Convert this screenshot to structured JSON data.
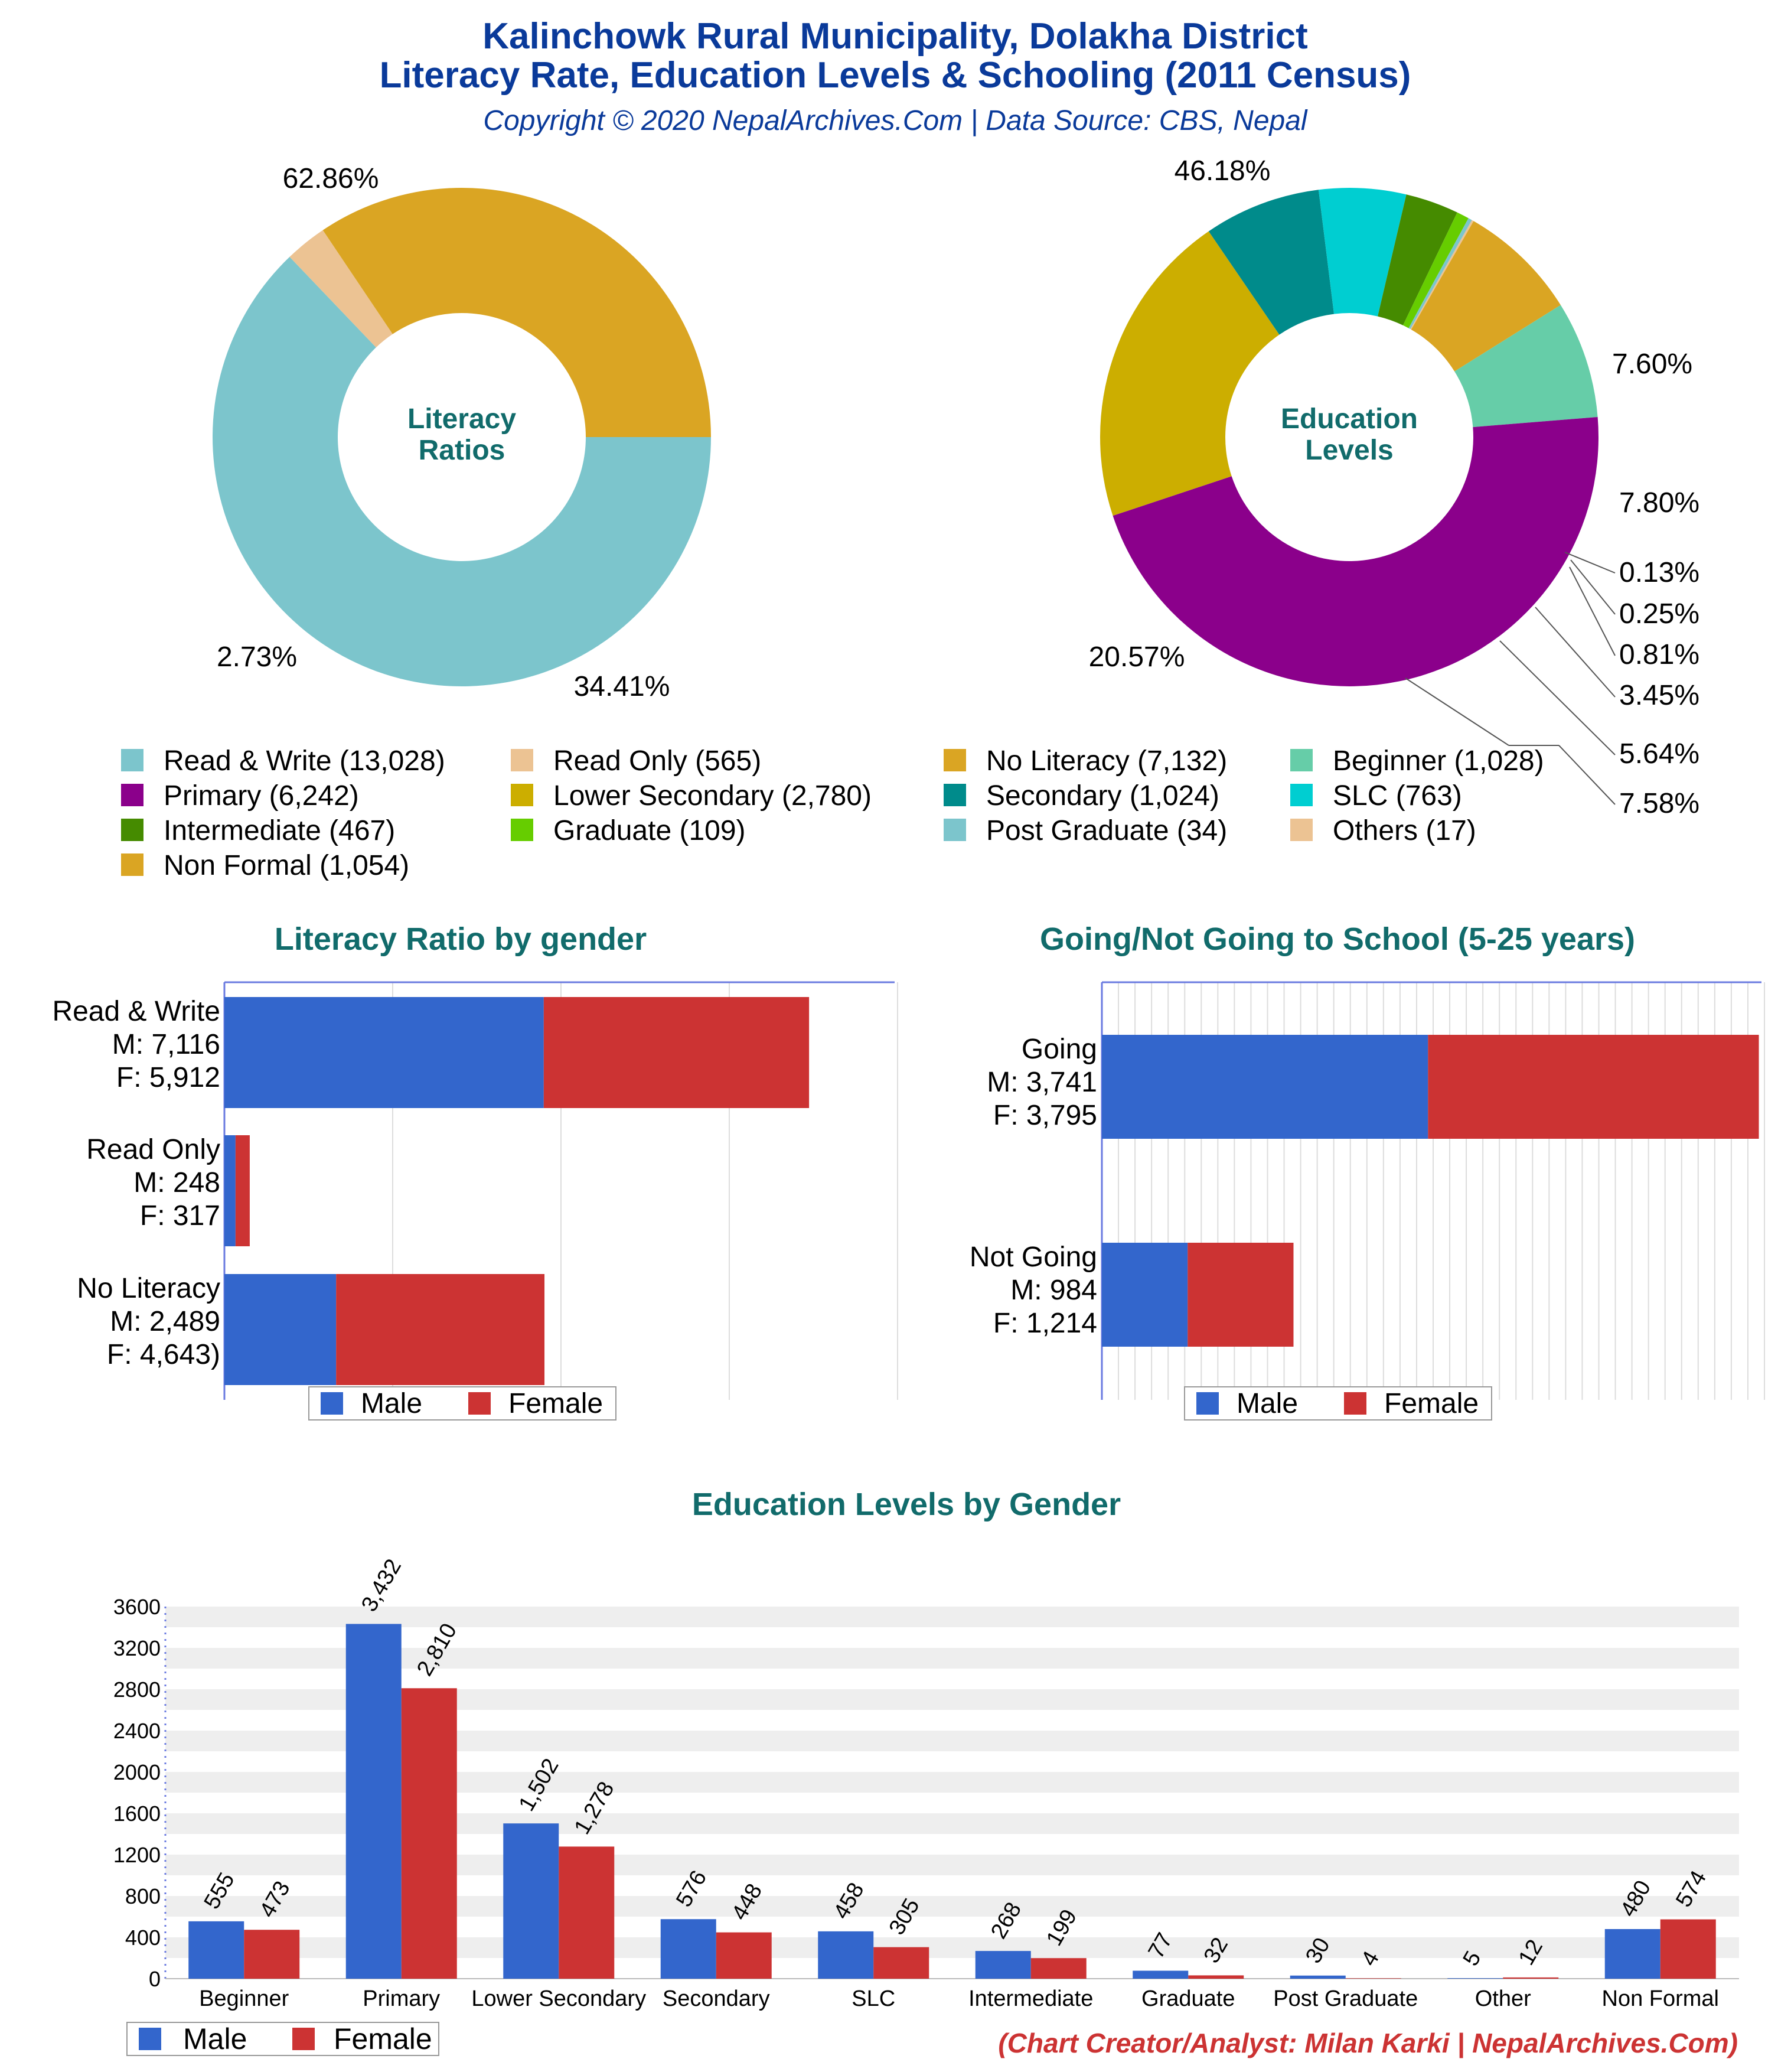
{
  "header": {
    "title_line1": "Kalinchowk Rural Municipality, Dolakha District",
    "title_line2": "Literacy Rate, Education Levels & Schooling (2011 Census)",
    "copyright": "Copyright © 2020 NepalArchives.Com | Data Source: CBS, Nepal"
  },
  "credit": "(Chart Creator/Analyst: Milan Karki | NepalArchives.Com)",
  "colors": {
    "title_blue": "#0a3a9a",
    "teal_title": "#116b6b",
    "male": "#3366cc",
    "female": "#cc3333",
    "credit_red": "#cc3333"
  },
  "chart_data": [
    {
      "type": "pie",
      "style": "donut",
      "center_label": [
        "Literacy",
        "Ratios"
      ],
      "slices": [
        {
          "label": "Read & Write",
          "value": 13028,
          "percent_label": "62.86%",
          "color": "#7cc5cc"
        },
        {
          "label": "Read Only",
          "value": 565,
          "percent_label": "2.73%",
          "color": "#ecc393"
        },
        {
          "label": "No Literacy",
          "value": 7132,
          "percent_label": "34.41%",
          "color": "#daa523"
        }
      ]
    },
    {
      "type": "pie",
      "style": "donut",
      "center_label": [
        "Education",
        "Levels"
      ],
      "slices": [
        {
          "label": "Beginner",
          "value": 1028,
          "percent_label": "7.60%",
          "color": "#66cda8"
        },
        {
          "label": "Primary",
          "value": 6242,
          "percent_label": "46.18%",
          "color": "#8b008b"
        },
        {
          "label": "Lower Secondary",
          "value": 2780,
          "percent_label": "20.57%",
          "color": "#ccae00"
        },
        {
          "label": "Secondary",
          "value": 1024,
          "percent_label": "7.58%",
          "color": "#008b8b"
        },
        {
          "label": "SLC",
          "value": 763,
          "percent_label": "5.64%",
          "color": "#00ced1"
        },
        {
          "label": "Intermediate",
          "value": 467,
          "percent_label": "3.45%",
          "color": "#458b00"
        },
        {
          "label": "Graduate",
          "value": 109,
          "percent_label": "0.81%",
          "color": "#66cd00"
        },
        {
          "label": "Post Graduate",
          "value": 34,
          "percent_label": "0.25%",
          "color": "#7cc5cc"
        },
        {
          "label": "Others",
          "value": 17,
          "percent_label": "0.13%",
          "color": "#ecc393"
        },
        {
          "label": "Non Formal",
          "value": 1054,
          "percent_label": "7.80%",
          "color": "#daa523"
        }
      ],
      "legend": [
        {
          "text": "Read & Write (13,028)",
          "color": "#7cc5cc"
        },
        {
          "text": "Read Only (565)",
          "color": "#ecc393"
        },
        {
          "text": "No Literacy (7,132)",
          "color": "#daa523"
        },
        {
          "text": "Beginner (1,028)",
          "color": "#66cda8"
        },
        {
          "text": "Primary (6,242)",
          "color": "#8b008b"
        },
        {
          "text": "Lower Secondary (2,780)",
          "color": "#ccae00"
        },
        {
          "text": "Secondary (1,024)",
          "color": "#008b8b"
        },
        {
          "text": "SLC (763)",
          "color": "#00ced1"
        },
        {
          "text": "Intermediate (467)",
          "color": "#458b00"
        },
        {
          "text": "Graduate (109)",
          "color": "#66cd00"
        },
        {
          "text": "Post Graduate (34)",
          "color": "#7cc5cc"
        },
        {
          "text": "Others (17)",
          "color": "#ecc393"
        },
        {
          "text": "Non Formal (1,054)",
          "color": "#daa523"
        }
      ]
    },
    {
      "type": "bar",
      "orientation": "horizontal",
      "stacked": true,
      "title": "Literacy Ratio by gender",
      "categories": [
        [
          "Read & Write",
          "M: 7,116",
          "F: 5,912"
        ],
        [
          "Read Only",
          "M: 248",
          "F: 317"
        ],
        [
          "No Literacy",
          "M: 2,489",
          "F: 4,643)"
        ]
      ],
      "series": [
        {
          "name": "Male",
          "values": [
            7116,
            248,
            2489
          ]
        },
        {
          "name": "Female",
          "values": [
            5912,
            317,
            4643
          ]
        }
      ],
      "xlim": [
        0,
        15000
      ],
      "grid": true,
      "legend_position": "bottom"
    },
    {
      "type": "bar",
      "orientation": "horizontal",
      "stacked": true,
      "title": "Going/Not Going to School (5-25 years)",
      "categories": [
        [
          "Going",
          "M: 3,741",
          "F: 3,795"
        ],
        [
          "Not Going",
          "M: 984",
          "F: 1,214"
        ]
      ],
      "series": [
        {
          "name": "Male",
          "values": [
            3741,
            984
          ]
        },
        {
          "name": "Female",
          "values": [
            3795,
            1214
          ]
        }
      ],
      "xlim": [
        0,
        7600
      ],
      "grid": true,
      "legend_position": "bottom"
    },
    {
      "type": "bar",
      "orientation": "vertical",
      "title": "Education Levels by Gender",
      "categories": [
        "Beginner",
        "Primary",
        "Lower Secondary",
        "Secondary",
        "SLC",
        "Intermediate",
        "Graduate",
        "Post Graduate",
        "Other",
        "Non Formal"
      ],
      "series": [
        {
          "name": "Male",
          "values": [
            555,
            3432,
            1502,
            576,
            458,
            268,
            77,
            30,
            5,
            480
          ],
          "labels": [
            "555",
            "3,432",
            "1,502",
            "576",
            "458",
            "268",
            "77",
            "30",
            "5",
            "480"
          ]
        },
        {
          "name": "Female",
          "values": [
            473,
            2810,
            1278,
            448,
            305,
            199,
            32,
            4,
            12,
            574
          ],
          "labels": [
            "473",
            "2,810",
            "1,278",
            "448",
            "305",
            "199",
            "32",
            "4",
            "12",
            "574"
          ]
        }
      ],
      "ylim": [
        0,
        3600
      ],
      "yticks": [
        "0",
        "400",
        "800",
        "1200",
        "1600",
        "2000",
        "2400",
        "2800",
        "3200",
        "3600"
      ],
      "grid": true,
      "legend_position": "bottom-left"
    }
  ]
}
